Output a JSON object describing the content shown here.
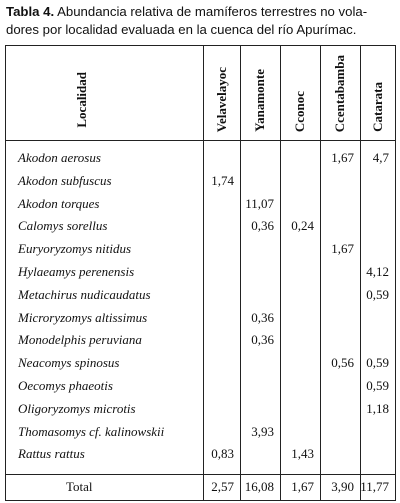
{
  "caption": {
    "label": "Tabla 4.",
    "lines": [
      "Abundancia relativa de mamíferos terrestres no vola-",
      "dores por localidad evaluada en la cuenca del río Apurímac."
    ]
  },
  "table": {
    "columns": [
      "Localidad",
      "Velavelayoc",
      "Yanamonte",
      "Cconoc",
      "Ccentabamba",
      "Catarata"
    ],
    "rows": [
      [
        "Akodon aerosus",
        null,
        null,
        null,
        "1,67",
        "4,7"
      ],
      [
        "Akodon subfuscus",
        "1,74",
        null,
        null,
        null,
        null
      ],
      [
        "Akodon torques",
        null,
        "11,07",
        null,
        null,
        null
      ],
      [
        "Calomys sorellus",
        null,
        "0,36",
        "0,24",
        null,
        null
      ],
      [
        "Euryoryzomys nitidus",
        null,
        null,
        null,
        "1,67",
        null
      ],
      [
        "Hylaeamys perenensis",
        null,
        null,
        null,
        null,
        "4,12"
      ],
      [
        "Metachirus nudicaudatus",
        null,
        null,
        null,
        null,
        "0,59"
      ],
      [
        "Microryzomys altissimus",
        null,
        "0,36",
        null,
        null,
        null
      ],
      [
        "Monodelphis peruviana",
        null,
        "0,36",
        null,
        null,
        null
      ],
      [
        "Neacomys spinosus",
        null,
        null,
        null,
        "0,56",
        "0,59"
      ],
      [
        "Oecomys phaeotis",
        null,
        null,
        null,
        null,
        "0,59"
      ],
      [
        "Oligoryzomys microtis",
        null,
        null,
        null,
        null,
        "1,18"
      ],
      [
        "Thomasomys cf. kalinowskii",
        null,
        "3,93",
        null,
        null,
        null
      ],
      [
        "Rattus rattus",
        "0,83",
        null,
        "1,43",
        null,
        null
      ]
    ],
    "total": [
      "Total",
      "2,57",
      "16,08",
      "1,67",
      "3,90",
      "11,77"
    ]
  }
}
